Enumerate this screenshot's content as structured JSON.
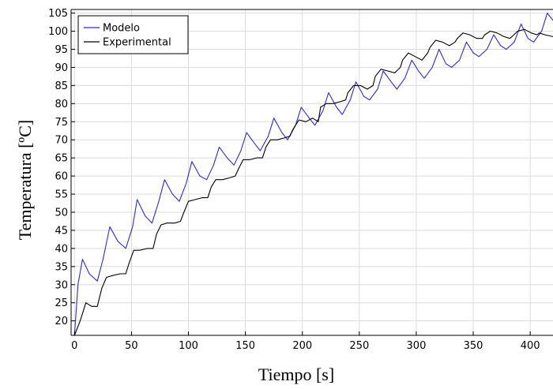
{
  "chart_data": {
    "type": "line",
    "xlabel": "Tiempo [s]",
    "ylabel": "Temperatura [ºC]",
    "xlim": [
      -3,
      420
    ],
    "ylim": [
      16,
      106
    ],
    "x_ticks": [
      0,
      50,
      100,
      150,
      200,
      250,
      300,
      350,
      400
    ],
    "y_ticks": [
      20,
      25,
      30,
      35,
      40,
      45,
      50,
      55,
      60,
      65,
      70,
      75,
      80,
      85,
      90,
      95,
      100,
      105
    ],
    "grid": true,
    "legend_position": "top-left",
    "series": [
      {
        "name": "Modelo",
        "color": "#2b2bd9",
        "x": [
          0,
          3,
          7,
          13,
          20,
          25,
          31,
          38,
          45,
          51,
          55,
          62,
          68,
          74,
          79,
          86,
          92,
          98,
          103,
          110,
          116,
          122,
          127,
          134,
          140,
          146,
          151,
          158,
          163,
          170,
          175,
          182,
          187,
          194,
          199,
          206,
          211,
          218,
          223,
          230,
          235,
          242,
          247,
          254,
          259,
          266,
          271,
          278,
          283,
          290,
          296,
          302,
          307,
          314,
          320,
          326,
          331,
          338,
          344,
          350,
          355,
          362,
          368,
          374,
          379,
          386,
          392,
          398,
          403,
          410,
          415,
          420
        ],
        "y": [
          16,
          30,
          37,
          33,
          31,
          37,
          46,
          42,
          40,
          46,
          53.5,
          49,
          47,
          53,
          59,
          55,
          53,
          58,
          64,
          60,
          59,
          63,
          68,
          65,
          63,
          67,
          72,
          69,
          67,
          71,
          76,
          72,
          70,
          74,
          79,
          76,
          74,
          78,
          83,
          79,
          77,
          81,
          86,
          82,
          81,
          84,
          89,
          86,
          84,
          87,
          92,
          89,
          87,
          90,
          95,
          91,
          90,
          92,
          97,
          94,
          93,
          95,
          99,
          96,
          95,
          97,
          102,
          98,
          97,
          100,
          105,
          103
        ]
      },
      {
        "name": "Experimental",
        "color": "#000000",
        "x": [
          0,
          5,
          10,
          15,
          20,
          24,
          28,
          33,
          40,
          45,
          48,
          52,
          57,
          64,
          69,
          72,
          76,
          81,
          88,
          93,
          96,
          100,
          106,
          112,
          117,
          120,
          124,
          130,
          136,
          141,
          144,
          148,
          154,
          160,
          165,
          168,
          172,
          178,
          184,
          189,
          192,
          197,
          203,
          209,
          214,
          216,
          221,
          227,
          233,
          238,
          240,
          245,
          251,
          257,
          262,
          264,
          269,
          275,
          281,
          286,
          288,
          293,
          299,
          305,
          310,
          312,
          317,
          323,
          329,
          334,
          336,
          341,
          347,
          353,
          358,
          360,
          365,
          371,
          377,
          382,
          384,
          389,
          395,
          401,
          406,
          408,
          413,
          420
        ],
        "y": [
          16,
          20,
          25,
          24,
          24,
          29,
          32,
          32.5,
          33,
          33,
          36,
          39.5,
          39.5,
          40,
          40,
          44,
          46.5,
          47,
          47,
          47.5,
          50,
          53,
          53.5,
          54,
          54,
          57,
          59,
          59,
          59.5,
          60,
          62,
          64.5,
          64.5,
          65,
          65,
          68,
          70,
          70,
          70.5,
          71,
          73,
          75.5,
          75,
          76,
          75,
          79,
          80,
          80,
          80.5,
          81,
          83,
          85,
          85,
          84,
          85,
          87.5,
          89.5,
          89,
          88.5,
          90,
          92,
          94,
          93,
          92,
          94,
          95.5,
          97.5,
          97,
          96,
          97,
          98,
          99.5,
          99,
          98,
          98,
          99,
          100,
          99.5,
          98.5,
          98,
          98.5,
          100,
          100.5,
          99.5,
          99,
          99.5,
          99,
          98.5
        ]
      }
    ]
  }
}
